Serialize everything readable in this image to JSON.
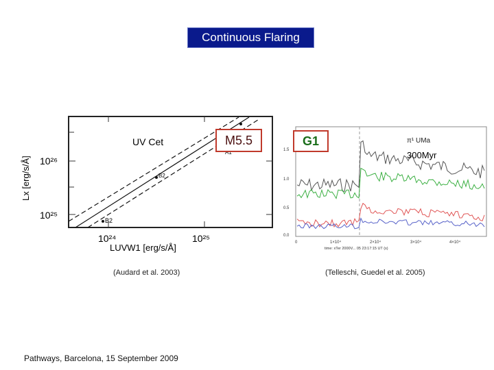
{
  "slide": {
    "title": "Continuous Flaring",
    "footer": "Pathways, Barcelona, 15 September 2009"
  },
  "left_plot": {
    "star_label": "UV Cet",
    "spectral_type": "M5.5",
    "caption": "(Audard et al. 2003)",
    "y_axis_label": "Lx [erg/s/Å]",
    "x_axis_label": "LUVW1 [erg/s/Å]",
    "y_ticks": [
      "10²⁶",
      "10²⁵"
    ],
    "x_ticks": [
      "10²⁴",
      "10²⁵"
    ],
    "point_labels": [
      "A1",
      "B1",
      "B2"
    ]
  },
  "right_plot": {
    "spectral_type": "G1",
    "star_name": "π¹ UMa",
    "age": "300Myr",
    "caption": "(Telleschi, Guedel et al. 2005)",
    "x_ticks": [
      "0",
      "1×10⁴",
      "2×10⁴",
      "3×10⁴",
      "4×10⁴"
    ],
    "y_ticks": [
      "1.5",
      "1.0",
      "0.5",
      "0.0"
    ],
    "x_axis_label": "time: xTer 2000V... 05 23:17:15 UT (s)"
  },
  "colors": {
    "title_bg": "#0a1a8c",
    "tag_border": "#c0392b",
    "g1_text": "#1a6e1a",
    "series_black": "#555555",
    "series_green": "#3cb043",
    "series_red": "#e05555",
    "series_blue": "#5560c8"
  }
}
